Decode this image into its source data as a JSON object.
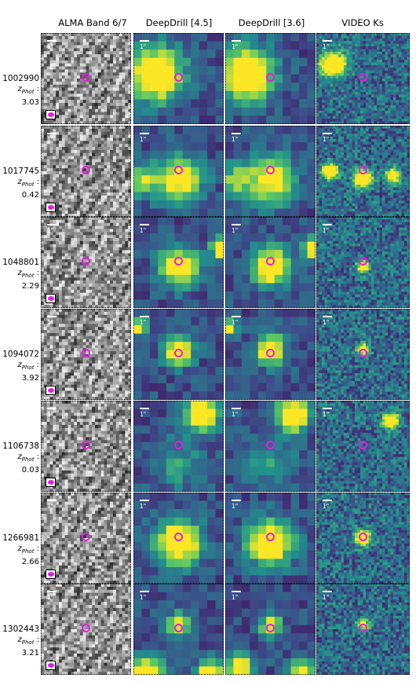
{
  "columns": [
    {
      "id": "alma",
      "label": "ALMA Band 6/7"
    },
    {
      "id": "dd45",
      "label": "DeepDrill [4.5]"
    },
    {
      "id": "dd36",
      "label": "DeepDrill [3.6]"
    },
    {
      "id": "video",
      "label": "VIDEO Ks"
    }
  ],
  "scale_label": "1\"",
  "z_prefix": "z",
  "z_sub": "Phot",
  "rows": [
    {
      "id": "1002990",
      "z": "3.03"
    },
    {
      "id": "1017745",
      "z": "0.42"
    },
    {
      "id": "1048801",
      "z": "2.29"
    },
    {
      "id": "1094072",
      "z": "3.92"
    },
    {
      "id": "1106738",
      "z": "0.03"
    },
    {
      "id": "1266981",
      "z": "2.66"
    },
    {
      "id": "1302443",
      "z": "3.21"
    }
  ],
  "colors": {
    "marker": "#e21ee0",
    "viridis_low": "#440154",
    "viridis_mid": "#21918c",
    "viridis_high": "#fde725"
  }
}
